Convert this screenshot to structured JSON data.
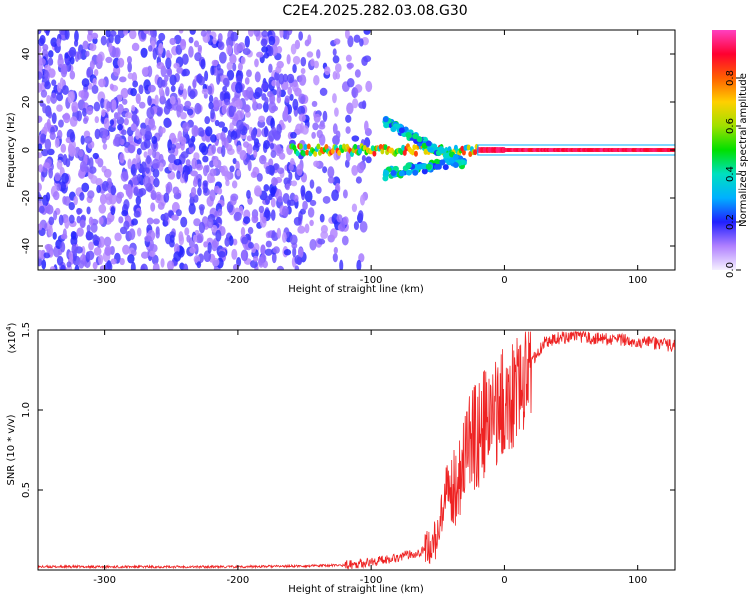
{
  "title": "C2E4.2025.282.03.08.G30",
  "chart_data": [
    {
      "type": "heatmap",
      "xlabel": "Height of straight line (km)",
      "ylabel": "Frequency (Hz)",
      "xlim": [
        -350,
        128
      ],
      "ylim": [
        -50,
        50
      ],
      "xticks": [
        "-300",
        "-200",
        "-100",
        "0",
        "100"
      ],
      "yticks": [
        "-40",
        "-20",
        "0",
        "20",
        "40"
      ],
      "colorbar": {
        "label": "Normalized spectral amplitude",
        "range": [
          0,
          1
        ],
        "ticks": [
          "0.0",
          "0.2",
          "0.4",
          "0.6",
          "0.8"
        ]
      },
      "features": {
        "noise_region_x": [
          -350,
          -140
        ],
        "signal_band_center_hz": 0,
        "signal_start_km": -160
      }
    },
    {
      "type": "line",
      "xlabel": "Height of straight line (km)",
      "ylabel": "SNR (10 * v/v)",
      "scale_label": "(x10",
      "scale_exp": "4",
      "xlim": [
        -350,
        128
      ],
      "ylim": [
        0,
        1.5
      ],
      "xticks": [
        "-300",
        "-200",
        "-100",
        "0",
        "100"
      ],
      "yticks": [
        "0.5",
        "1.0",
        "1.5"
      ],
      "line_color": "#ee2222",
      "series": [
        {
          "x": [
            -350,
            -300,
            -250,
            -200,
            -150,
            -120,
            -100,
            -80,
            -60,
            -50,
            -45,
            -40,
            -35,
            -30,
            -25,
            -20,
            -15,
            -10,
            -5,
            0,
            10,
            20,
            30,
            40,
            50,
            60,
            80,
            100,
            128
          ],
          "y": [
            0.02,
            0.02,
            0.02,
            0.02,
            0.025,
            0.03,
            0.05,
            0.08,
            0.12,
            0.2,
            0.4,
            0.5,
            0.55,
            0.75,
            0.8,
            0.85,
            0.9,
            0.95,
            1.0,
            1.05,
            1.15,
            1.3,
            1.42,
            1.45,
            1.46,
            1.45,
            1.44,
            1.43,
            1.4
          ]
        }
      ]
    }
  ]
}
